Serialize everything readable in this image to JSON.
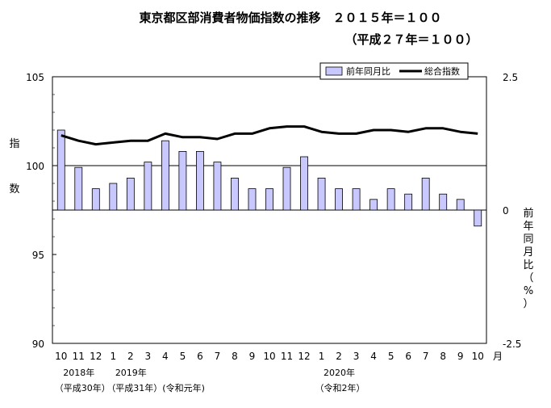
{
  "chart_data": {
    "type": "bar+line",
    "title": "東京都区部消費者物価指数の推移　２０１５年＝１００",
    "subtitle": "（平成２７年＝１００）",
    "categories": [
      "10",
      "11",
      "12",
      "1",
      "2",
      "3",
      "4",
      "5",
      "6",
      "7",
      "8",
      "9",
      "10",
      "11",
      "12",
      "1",
      "2",
      "3",
      "4",
      "5",
      "6",
      "7",
      "8",
      "9",
      "10"
    ],
    "month_unit": "月",
    "year_labels": [
      {
        "index": 0,
        "year": "2018年",
        "era": "（平成30年）"
      },
      {
        "index": 3,
        "year": "2019年",
        "era": "（平成31年）(令和元年)"
      },
      {
        "index": 15,
        "year": "2020年",
        "era": "（令和2年）"
      }
    ],
    "left_axis": {
      "label_chars": [
        "指",
        "数"
      ],
      "ylim": [
        90,
        105
      ],
      "ticks": [
        "105",
        "100",
        "95",
        "90"
      ]
    },
    "right_axis": {
      "label_chars": [
        "前",
        "年",
        "同",
        "月",
        "比",
        "（",
        "%",
        "）"
      ],
      "ylim": [
        -2.5,
        2.5
      ],
      "ticks": [
        "2.5",
        "0",
        "-2.5"
      ]
    },
    "series": [
      {
        "name": "前年同月比",
        "type": "bar",
        "axis": "right",
        "color": "#c8c8ff",
        "values": [
          1.5,
          0.8,
          0.4,
          0.5,
          0.6,
          0.9,
          1.3,
          1.1,
          1.1,
          0.9,
          0.6,
          0.4,
          0.4,
          0.8,
          1.0,
          0.6,
          0.4,
          0.4,
          0.2,
          0.4,
          0.3,
          0.6,
          0.3,
          0.2,
          -0.3
        ]
      },
      {
        "name": "総合指数",
        "type": "line",
        "axis": "left",
        "color": "#000000",
        "values": [
          101.7,
          101.4,
          101.2,
          101.3,
          101.4,
          101.4,
          101.8,
          101.6,
          101.6,
          101.5,
          101.8,
          101.8,
          102.1,
          102.2,
          102.2,
          101.9,
          101.8,
          101.8,
          102.0,
          102.0,
          101.9,
          102.1,
          102.1,
          101.9,
          101.8
        ]
      }
    ],
    "legend": {
      "position": "top-right"
    },
    "reference_line_at": 100
  }
}
